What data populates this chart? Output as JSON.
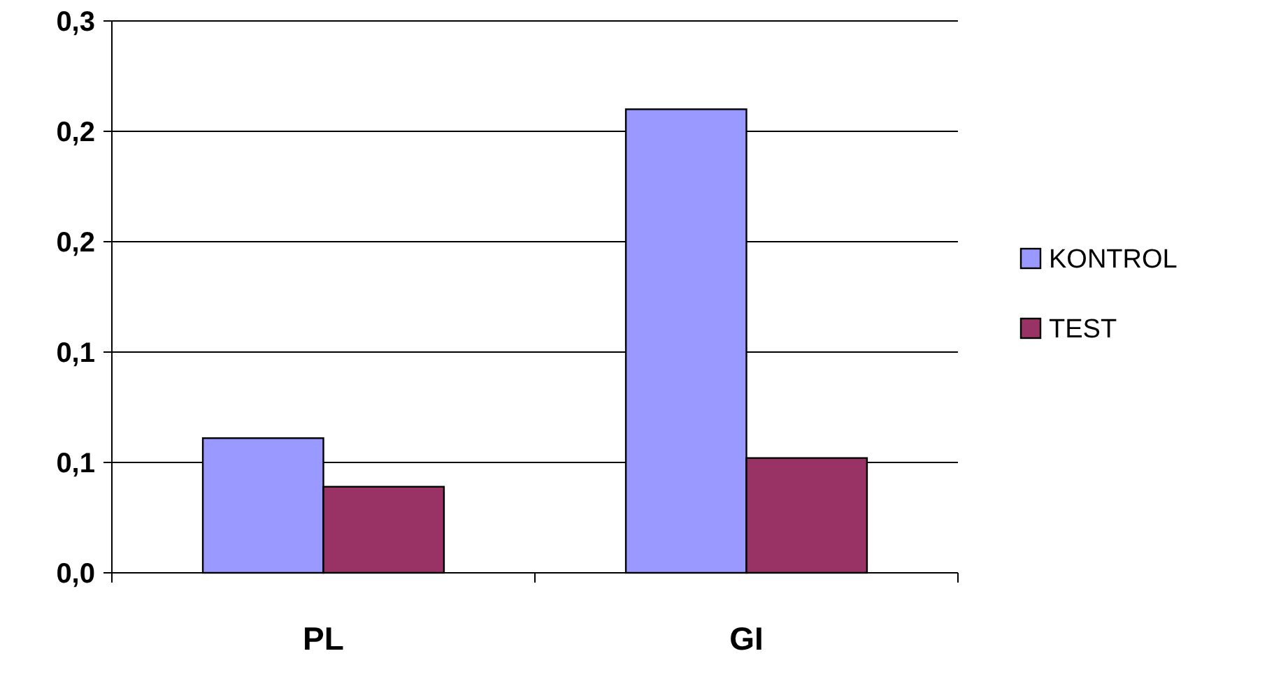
{
  "chart_data": {
    "type": "bar",
    "categories": [
      "PL",
      "GI"
    ],
    "series": [
      {
        "name": "KONTROL",
        "color": "#9999ff",
        "values": [
          0.061,
          0.21
        ]
      },
      {
        "name": "TEST",
        "color": "#993366",
        "values": [
          0.039,
          0.052
        ]
      }
    ],
    "ylim": [
      0,
      0.25
    ],
    "yticks": [
      {
        "value": 0,
        "label": "0,0"
      },
      {
        "value": 0.05,
        "label": "0,1"
      },
      {
        "value": 0.1,
        "label": "0,1"
      },
      {
        "value": 0.15,
        "label": "0,2"
      },
      {
        "value": 0.2,
        "label": "0,2"
      },
      {
        "value": 0.25,
        "label": "0,3"
      }
    ],
    "grid": "y",
    "legend": "right"
  }
}
